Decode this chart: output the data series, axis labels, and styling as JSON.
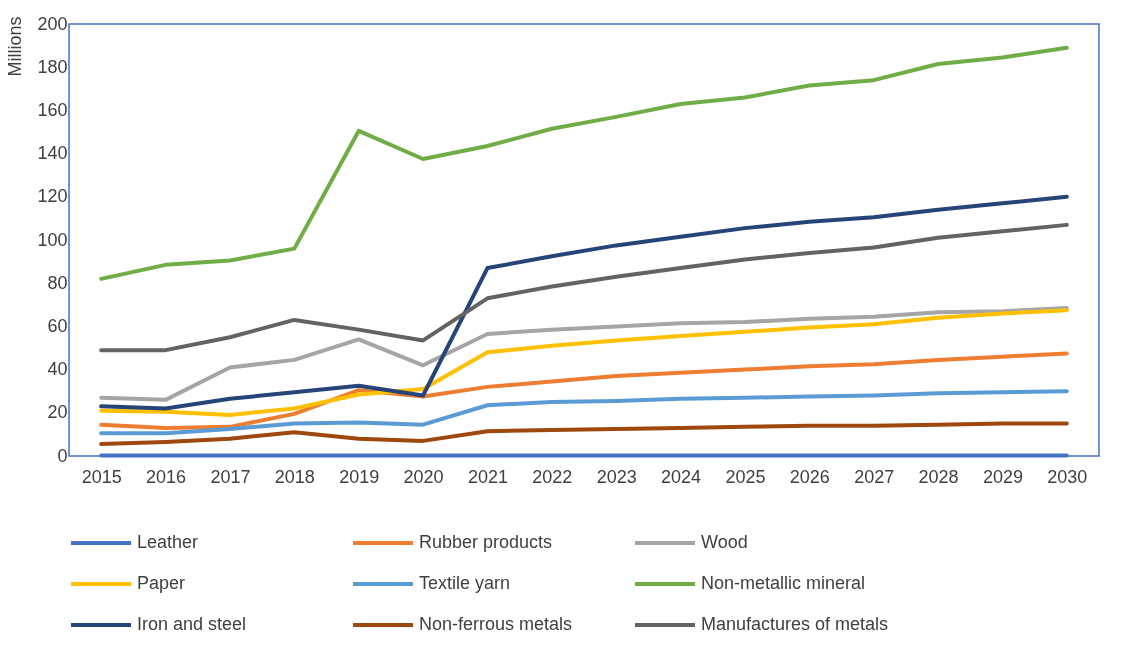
{
  "chart_data": {
    "type": "line",
    "ylabel": "Millions",
    "categories": [
      "2015",
      "2016",
      "2017",
      "2018",
      "2019",
      "2020",
      "2021",
      "2022",
      "2023",
      "2024",
      "2025",
      "2026",
      "2027",
      "2028",
      "2029",
      "2030"
    ],
    "ylim": [
      0,
      200
    ],
    "yticks": [
      0,
      20,
      40,
      60,
      80,
      100,
      120,
      140,
      160,
      180,
      200
    ],
    "grid": false,
    "legend": "bottom",
    "marker": "none",
    "line_style": "solid",
    "series": [
      {
        "name": "Leather",
        "color": "#4472c4",
        "values": [
          0.2,
          0.2,
          0.2,
          0.2,
          0.2,
          0.2,
          0.2,
          0.2,
          0.2,
          0.2,
          0.2,
          0.2,
          0.2,
          0.2,
          0.2,
          0.2
        ]
      },
      {
        "name": "Rubber products",
        "color": "#ed7d31",
        "values": [
          14.5,
          13,
          13.5,
          19.5,
          30.5,
          27.5,
          32,
          34.5,
          37,
          38.5,
          40,
          41.5,
          42.5,
          44.5,
          46,
          47.5
        ]
      },
      {
        "name": "Wood",
        "color": "#a5a5a5",
        "values": [
          27,
          26,
          41,
          44.5,
          54,
          42,
          56.5,
          58.5,
          60,
          61.5,
          62,
          63.5,
          64.5,
          66.5,
          67,
          68.5
        ]
      },
      {
        "name": "Paper",
        "color": "#ffc000",
        "values": [
          21,
          20.5,
          19,
          22,
          28.5,
          31,
          48,
          51,
          53.5,
          55.5,
          57.5,
          59.5,
          61,
          64,
          66,
          67.5
        ]
      },
      {
        "name": "Textile yarn",
        "color": "#5b9bd5",
        "values": [
          10.5,
          10.5,
          12.5,
          15,
          15.5,
          14.5,
          23.5,
          25,
          25.5,
          26.5,
          27,
          27.5,
          28,
          29,
          29.5,
          30
        ]
      },
      {
        "name": "Non-metallic mineral",
        "color": "#70ad47",
        "values": [
          82,
          88.5,
          90.5,
          96,
          150.5,
          137.5,
          143.5,
          151.5,
          157,
          163,
          166,
          171.5,
          174,
          181.5,
          184.5,
          189
        ]
      },
      {
        "name": "Iron and steel",
        "color": "#264478",
        "values": [
          23,
          22,
          26.5,
          29.5,
          32.5,
          28,
          87,
          92.5,
          97.5,
          101.5,
          105.5,
          108.5,
          110.5,
          114,
          117,
          120
        ]
      },
      {
        "name": "Non-ferrous metals",
        "color": "#9e480e",
        "values": [
          5.5,
          6.5,
          8,
          11,
          8,
          7,
          11.5,
          12,
          12.5,
          13,
          13.5,
          14,
          14,
          14.5,
          15,
          15
        ]
      },
      {
        "name": "Manufactures of metals",
        "color": "#636363",
        "values": [
          49,
          49,
          55,
          63,
          58.5,
          53.5,
          73,
          78.5,
          83,
          87,
          91,
          94,
          96.5,
          101,
          104,
          107
        ]
      }
    ]
  }
}
